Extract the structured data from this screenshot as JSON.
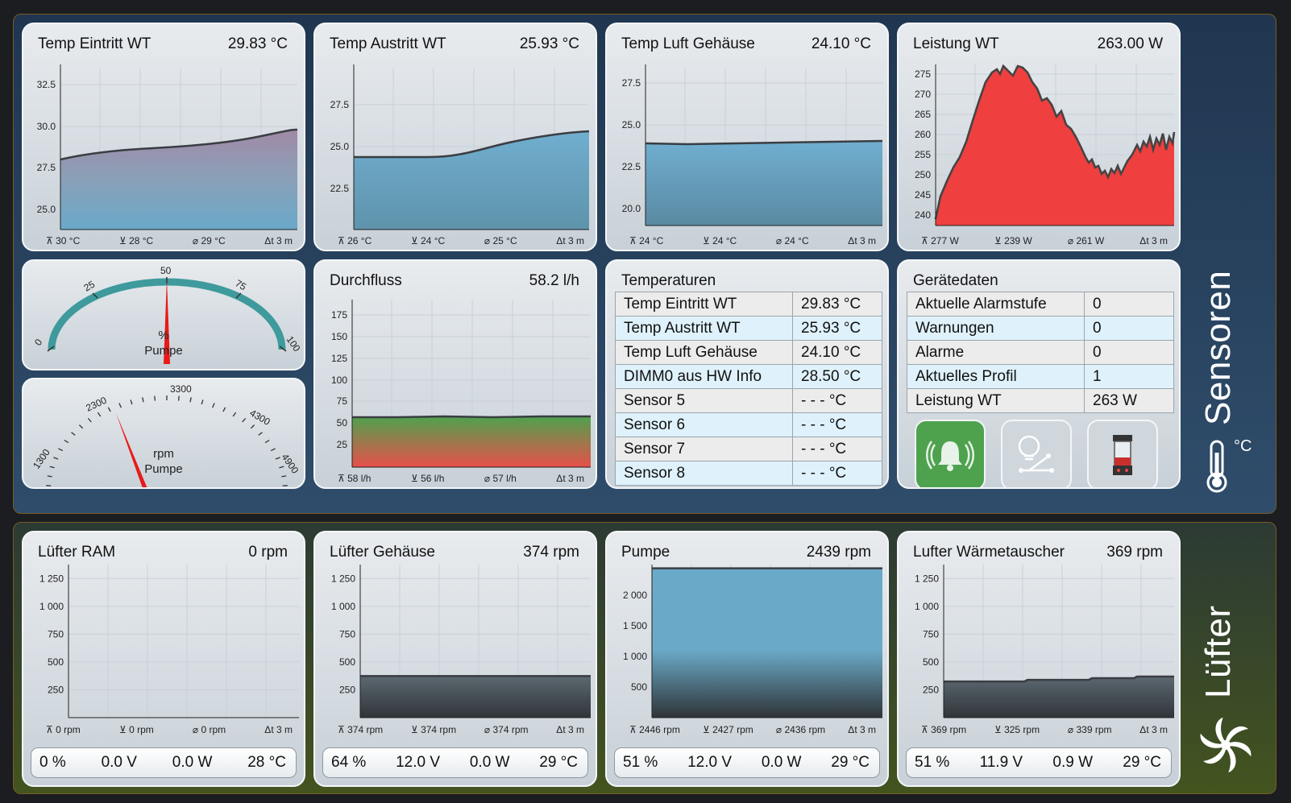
{
  "sections": {
    "sensors": {
      "title": "Sensoren",
      "unit_symbol": "°C"
    },
    "fans": {
      "title": "Lüfter"
    }
  },
  "temp_charts": [
    {
      "title": "Temp Eintritt WT",
      "value": "29.83 °C",
      "ticks": [
        "32.5",
        "30.0",
        "27.5",
        "25.0"
      ],
      "max": "30 °C",
      "min": "28 °C",
      "avg": "29 °C",
      "span": "3 m"
    },
    {
      "title": "Temp Austritt WT",
      "value": "25.93 °C",
      "ticks": [
        "27.5",
        "25.0",
        "22.5"
      ],
      "max": "26 °C",
      "min": "24 °C",
      "avg": "25 °C",
      "span": "3 m"
    },
    {
      "title": "Temp Luft Gehäuse",
      "value": "24.10 °C",
      "ticks": [
        "27.5",
        "25.0",
        "22.5",
        "20.0"
      ],
      "max": "24 °C",
      "min": "24 °C",
      "avg": "24 °C",
      "span": "3 m"
    },
    {
      "title": "Leistung WT",
      "value": "263.00 W",
      "ticks": [
        "275",
        "270",
        "265",
        "260",
        "255",
        "250",
        "245",
        "240"
      ],
      "max": "277 W",
      "min": "239 W",
      "avg": "261 W",
      "span": "3 m"
    }
  ],
  "gauge_percent": {
    "ticks": [
      "0",
      "25",
      "50",
      "75",
      "100"
    ],
    "unit": "%",
    "label": "Pumpe",
    "value_percent": 50
  },
  "gauge_rpm": {
    "ticks": [
      "1300",
      "2300",
      "3300",
      "4300",
      "4900"
    ],
    "unit": "rpm",
    "label": "Pumpe",
    "value_rpm": 2439
  },
  "flow": {
    "title": "Durchfluss",
    "value": "58.2 l/h",
    "ticks": [
      "175",
      "150",
      "125",
      "100",
      "75",
      "50",
      "25"
    ],
    "max": "58 l/h",
    "min": "56 l/h",
    "avg": "57 l/h",
    "span": "3 m"
  },
  "temps_table": {
    "title": "Temperaturen",
    "rows": [
      {
        "name": "Temp Eintritt WT",
        "value": "29.83 °C"
      },
      {
        "name": "Temp Austritt WT",
        "value": "25.93 °C"
      },
      {
        "name": "Temp Luft Gehäuse",
        "value": "24.10 °C"
      },
      {
        "name": "DIMM0 aus HW Info",
        "value": "28.50 °C"
      },
      {
        "name": "Sensor 5",
        "value": "- - - °C"
      },
      {
        "name": "Sensor 6",
        "value": "- - - °C"
      },
      {
        "name": "Sensor 7",
        "value": "- - - °C"
      },
      {
        "name": "Sensor 8",
        "value": "- - - °C"
      }
    ]
  },
  "device_table": {
    "title": "Gerätedaten",
    "rows": [
      {
        "name": "Aktuelle Alarmstufe",
        "value": "0"
      },
      {
        "name": "Warnungen",
        "value": "0"
      },
      {
        "name": "Alarme",
        "value": "0"
      },
      {
        "name": "Aktuelles Profil",
        "value": "1"
      },
      {
        "name": "Leistung WT",
        "value": "263 W"
      }
    ]
  },
  "device_buttons": [
    {
      "icon": "alarm-bell-icon",
      "color": "#4ea24e"
    },
    {
      "icon": "light-bulb-toggle-icon",
      "color": "#cfd6dc"
    },
    {
      "icon": "reservoir-icon",
      "color": "#cfd6dc"
    }
  ],
  "fan_charts": [
    {
      "title": "Lüfter RAM",
      "value": "0 rpm",
      "ticks": [
        "1 250",
        "1 000",
        "750",
        "500",
        "250"
      ],
      "max": "0 rpm",
      "min": "0 rpm",
      "avg": "0 rpm",
      "span": "3 m",
      "footer": {
        "percent": "0 %",
        "voltage": "0.0 V",
        "power": "0.0 W",
        "temp": "28 °C"
      }
    },
    {
      "title": "Lüfter Gehäuse",
      "value": "374 rpm",
      "ticks": [
        "1 250",
        "1 000",
        "750",
        "500",
        "250"
      ],
      "max": "374 rpm",
      "min": "374 rpm",
      "avg": "374 rpm",
      "span": "3 m",
      "footer": {
        "percent": "64 %",
        "voltage": "12.0 V",
        "power": "0.0 W",
        "temp": "29 °C"
      }
    },
    {
      "title": "Pumpe",
      "value": "2439 rpm",
      "ticks": [
        "2 000",
        "1 500",
        "1 000",
        "500"
      ],
      "max": "2446 rpm",
      "min": "2427 rpm",
      "avg": "2436 rpm",
      "span": "3 m",
      "footer": {
        "percent": "51 %",
        "voltage": "12.0 V",
        "power": "0.0 W",
        "temp": "29 °C"
      }
    },
    {
      "title": "Lufter Wärmetauscher",
      "value": "369 rpm",
      "ticks": [
        "1 250",
        "1 000",
        "750",
        "500",
        "250"
      ],
      "max": "369 rpm",
      "min": "325 rpm",
      "avg": "339 rpm",
      "span": "3 m",
      "footer": {
        "percent": "51 %",
        "voltage": "11.9 V",
        "power": "0.9 W",
        "temp": "29 °C"
      }
    }
  ],
  "colors": {
    "section_border": "#7a5a24",
    "temp_fill": "#6aa9c7",
    "power_fill": "#ef3f3f",
    "flow_top": "#4ea24e",
    "flow_bottom": "#e8504a",
    "needle": "#e81a1a",
    "gauge_arc": "#3e9a9c"
  }
}
